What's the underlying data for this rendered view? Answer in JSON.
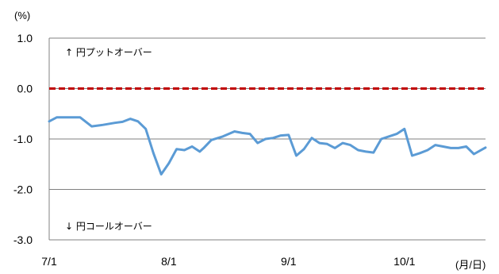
{
  "chart_data": {
    "type": "line",
    "title": "",
    "y_unit": "(%)",
    "x_unit": "(月/日)",
    "ylim": [
      -3.0,
      1.0
    ],
    "y_ticks": [
      "1.0",
      "0.0",
      "-1.0",
      "-2.0",
      "-3.0"
    ],
    "y_tick_values": [
      1.0,
      0.0,
      -1.0,
      -2.0,
      -3.0
    ],
    "x_ticks": [
      "7/1",
      "8/1",
      "9/1",
      "10/1"
    ],
    "x_tick_index": [
      0,
      31,
      62,
      92
    ],
    "x_max_index": 113,
    "grid": "horizontal",
    "reference_line": {
      "value": 0.0,
      "color": "#c00000",
      "style": "dashed"
    },
    "annotations": {
      "upper": "↑ 円プットオーバー",
      "lower": "↓ 円コールオーバー"
    },
    "series": [
      {
        "color": "#5b9bd5",
        "x": [
          0,
          2,
          5,
          8,
          11,
          14,
          17,
          19,
          21,
          23,
          25,
          27,
          29,
          31,
          33,
          35,
          37,
          39,
          40,
          42,
          45,
          48,
          50,
          52,
          54,
          56,
          58,
          60,
          62,
          64,
          66,
          68,
          70,
          72,
          74,
          76,
          78,
          80,
          82,
          84,
          86,
          88,
          90,
          92,
          94,
          96,
          98,
          100,
          102,
          104,
          106,
          108,
          110,
          113
        ],
        "y": [
          -0.65,
          -0.57,
          -0.57,
          -0.57,
          -0.75,
          -0.72,
          -0.68,
          -0.66,
          -0.6,
          -0.65,
          -0.8,
          -1.28,
          -1.7,
          -1.48,
          -1.2,
          -1.22,
          -1.15,
          -1.25,
          -1.18,
          -1.02,
          -0.95,
          -0.85,
          -0.88,
          -0.9,
          -1.08,
          -1.0,
          -0.98,
          -0.93,
          -0.92,
          -1.33,
          -1.2,
          -0.98,
          -1.08,
          -1.1,
          -1.18,
          -1.08,
          -1.12,
          -1.22,
          -1.25,
          -1.27,
          -1.0,
          -0.95,
          -0.9,
          -0.8,
          -1.33,
          -1.28,
          -1.22,
          -1.12,
          -1.15,
          -1.18,
          -1.18,
          -1.15,
          -1.3,
          -1.17
        ]
      }
    ]
  }
}
